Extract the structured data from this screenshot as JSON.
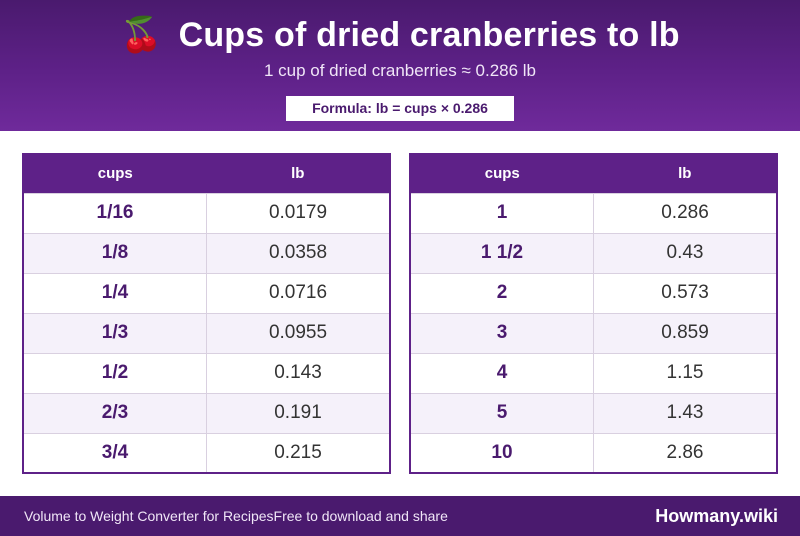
{
  "header": {
    "icon": "cherry-icon",
    "icon_glyph": "🍒",
    "title": "Cups of dried cranberries to lb",
    "subtitle": "1 cup of dried cranberries ≈ 0.286 lb",
    "formula": "Formula: lb = cups × 0.286"
  },
  "colors": {
    "header_bg": "#5e2188",
    "accent": "#4a1a6e",
    "row_alt": "#f5f1fa"
  },
  "tables": {
    "left": {
      "headers": [
        "cups",
        "lb"
      ],
      "rows": [
        [
          "1/16",
          "0.0179"
        ],
        [
          "1/8",
          "0.0358"
        ],
        [
          "1/4",
          "0.0716"
        ],
        [
          "1/3",
          "0.0955"
        ],
        [
          "1/2",
          "0.143"
        ],
        [
          "2/3",
          "0.191"
        ],
        [
          "3/4",
          "0.215"
        ]
      ]
    },
    "right": {
      "headers": [
        "cups",
        "lb"
      ],
      "rows": [
        [
          "1",
          "0.286"
        ],
        [
          "1 1/2",
          "0.43"
        ],
        [
          "2",
          "0.573"
        ],
        [
          "3",
          "0.859"
        ],
        [
          "4",
          "1.15"
        ],
        [
          "5",
          "1.43"
        ],
        [
          "10",
          "2.86"
        ]
      ]
    }
  },
  "footer": {
    "left_text": "Volume to Weight Converter for RecipesFree to download and share",
    "brand": "Howmany.wiki"
  }
}
